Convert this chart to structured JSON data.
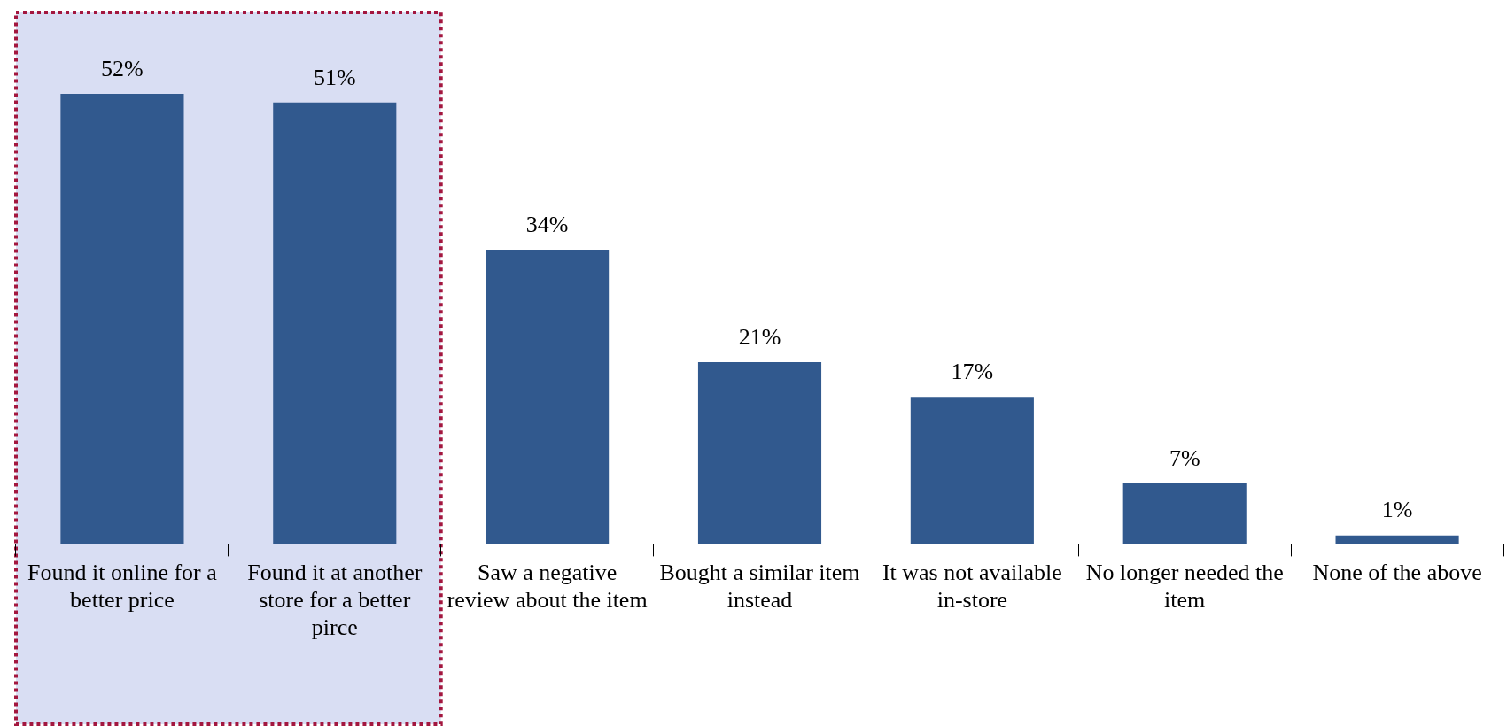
{
  "chart_data": {
    "type": "bar",
    "categories": [
      "Found it online for a better price",
      "Found it at another store for a better pirce",
      "Saw a negative review about the item",
      "Bought a similar item instead",
      "It was not available in-store",
      "No longer needed the item",
      "None of the above"
    ],
    "values": [
      52,
      51,
      34,
      21,
      17,
      7,
      1
    ],
    "value_labels": [
      "52%",
      "51%",
      "34%",
      "21%",
      "17%",
      "7%",
      "1%"
    ],
    "color": "#31598e",
    "bands": [
      {
        "axis": "x",
        "from": "Found it online for a better price",
        "to": "Found it at another store for a better pirce",
        "color": "#d9def3"
      }
    ],
    "grid": false,
    "legend": false,
    "tick_labels": "x"
  }
}
